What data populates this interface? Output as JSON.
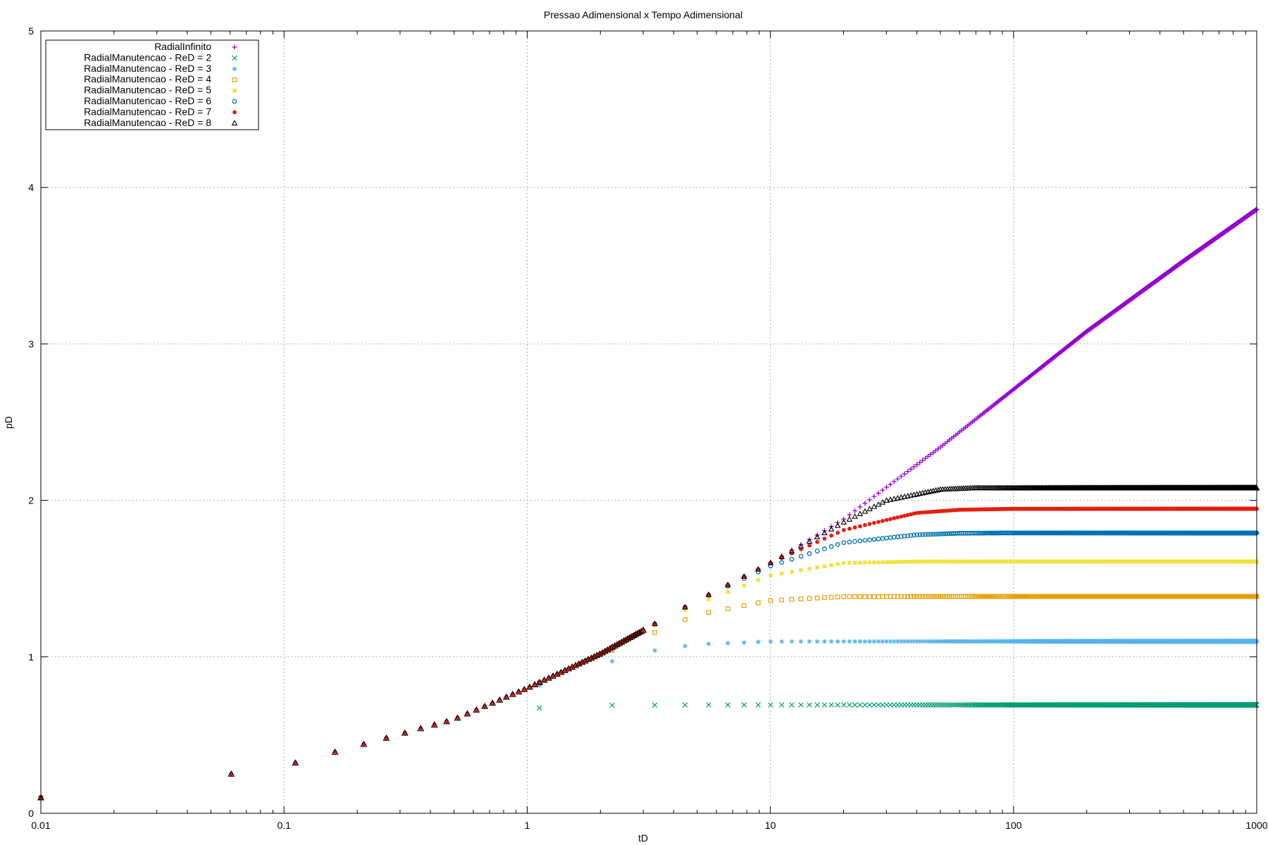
{
  "chart_data": {
    "type": "scatter",
    "title": "Pressao Adimensional x Tempo Adimensional",
    "xlabel": "tD",
    "ylabel": "pD",
    "xscale": "log",
    "xlim": [
      0.01,
      1000
    ],
    "ylim": [
      0,
      5
    ],
    "grid": true,
    "legend_position": "top-left",
    "x_ticks": [
      "0.01",
      "0.1",
      "1",
      "10",
      "100",
      "1000"
    ],
    "y_ticks": [
      "0",
      "1",
      "2",
      "3",
      "4",
      "5"
    ],
    "series": [
      {
        "name": "RadialInfinito",
        "marker": "plus",
        "color": "#9400d3",
        "x": [
          0.01,
          0.06,
          0.11,
          0.2,
          0.5,
          1,
          2,
          5,
          10,
          20,
          50,
          100,
          200,
          500,
          1000
        ],
        "y": [
          0.1,
          0.25,
          0.32,
          0.43,
          0.6,
          0.8,
          1.02,
          1.36,
          1.6,
          1.88,
          2.34,
          2.71,
          3.08,
          3.53,
          3.86
        ]
      },
      {
        "name": "RadialManutencao - ReD = 2",
        "marker": "cross",
        "color": "#009e73",
        "x": [
          0.01,
          0.06,
          0.11,
          0.2,
          0.5,
          1,
          2,
          5,
          10,
          100,
          1000
        ],
        "y": [
          0.1,
          0.25,
          0.32,
          0.43,
          0.58,
          0.67,
          0.69,
          0.693,
          0.693,
          0.693,
          0.693
        ]
      },
      {
        "name": "RadialManutencao - ReD = 3",
        "marker": "star",
        "color": "#56b4e9",
        "x": [
          0.01,
          0.06,
          0.11,
          0.2,
          0.5,
          1,
          2,
          3,
          5,
          10,
          100,
          1000
        ],
        "y": [
          0.1,
          0.25,
          0.32,
          0.43,
          0.6,
          0.79,
          0.95,
          1.03,
          1.08,
          1.098,
          1.099,
          1.099
        ]
      },
      {
        "name": "RadialManutencao - ReD = 4",
        "marker": "square-open",
        "color": "#e69f00",
        "x": [
          0.01,
          0.06,
          0.11,
          0.2,
          0.5,
          1,
          2,
          5,
          10,
          20,
          100,
          1000
        ],
        "y": [
          0.1,
          0.25,
          0.32,
          0.43,
          0.6,
          0.8,
          1.01,
          1.27,
          1.36,
          1.385,
          1.386,
          1.386
        ]
      },
      {
        "name": "RadialManutencao - ReD = 5",
        "marker": "square-filled",
        "color": "#f0e442",
        "x": [
          0.01,
          0.06,
          0.11,
          0.2,
          0.5,
          1,
          2,
          5,
          10,
          20,
          40,
          100,
          1000
        ],
        "y": [
          0.1,
          0.25,
          0.32,
          0.43,
          0.6,
          0.8,
          1.02,
          1.34,
          1.52,
          1.6,
          1.609,
          1.609,
          1.609
        ]
      },
      {
        "name": "RadialManutencao - ReD = 6",
        "marker": "circle-open",
        "color": "#0072b2",
        "x": [
          0.01,
          0.06,
          0.11,
          0.2,
          0.5,
          1,
          2,
          5,
          10,
          20,
          40,
          60,
          100,
          1000
        ],
        "y": [
          0.1,
          0.25,
          0.32,
          0.43,
          0.6,
          0.8,
          1.02,
          1.36,
          1.58,
          1.73,
          1.78,
          1.79,
          1.792,
          1.792
        ]
      },
      {
        "name": "RadialManutencao - ReD = 7",
        "marker": "circle-filled",
        "color": "#e51e10",
        "x": [
          0.01,
          0.06,
          0.11,
          0.2,
          0.5,
          1,
          2,
          5,
          10,
          20,
          40,
          60,
          100,
          1000
        ],
        "y": [
          0.1,
          0.25,
          0.32,
          0.43,
          0.6,
          0.8,
          1.02,
          1.36,
          1.6,
          1.81,
          1.92,
          1.94,
          1.946,
          1.946
        ]
      },
      {
        "name": "RadialManutencao - ReD = 8",
        "marker": "triangle-open",
        "color": "#000000",
        "x": [
          0.01,
          0.06,
          0.11,
          0.2,
          0.5,
          1,
          2,
          5,
          10,
          20,
          30,
          50,
          70,
          100,
          1000
        ],
        "y": [
          0.1,
          0.25,
          0.32,
          0.43,
          0.6,
          0.8,
          1.02,
          1.36,
          1.6,
          1.86,
          2.0,
          2.07,
          2.08,
          2.079,
          2.079
        ]
      }
    ]
  }
}
